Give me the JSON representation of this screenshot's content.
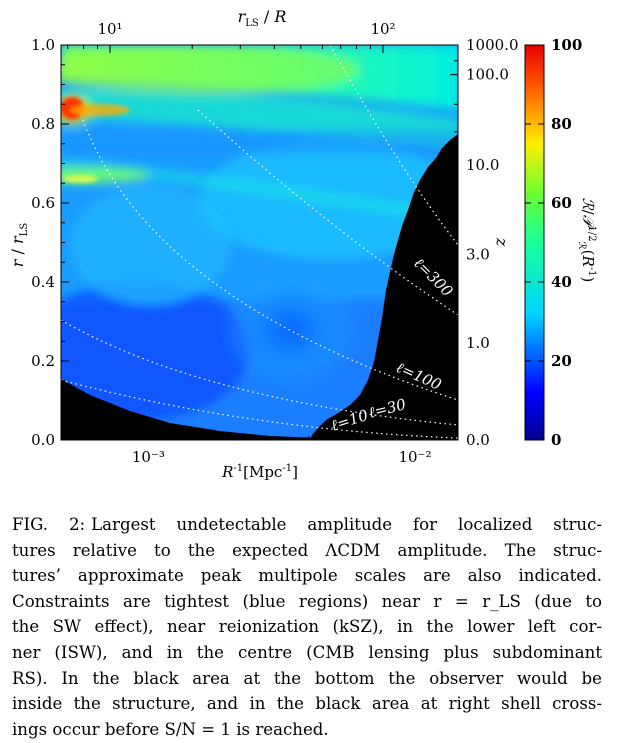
{
  "chart_data": {
    "type": "heatmap",
    "x_bottom": {
      "label": "R⁻¹[Mpc⁻¹]",
      "scale": "log",
      "range": [
        0.00047,
        0.0145
      ],
      "major_ticks": [
        {
          "value": 0.001,
          "label": "10⁻³"
        },
        {
          "value": 0.01,
          "label": "10⁻²"
        }
      ]
    },
    "x_top": {
      "label": "r_LS / R",
      "scale": "log",
      "major_ticks": [
        {
          "value": 10,
          "label": "10¹"
        },
        {
          "value": 100,
          "label": "10²"
        }
      ]
    },
    "y_left": {
      "label": "r / r_LS",
      "range": [
        0.0,
        1.0
      ],
      "ticks": [
        "0.0",
        "0.2",
        "0.4",
        "0.6",
        "0.8",
        "1.0"
      ]
    },
    "y_right": {
      "label": "z",
      "ticks": [
        {
          "frac": 0.0,
          "label": "0.0"
        },
        {
          "frac": 0.245,
          "label": "1.0"
        },
        {
          "frac": 0.47,
          "label": "3.0"
        },
        {
          "frac": 0.696,
          "label": "10.0"
        },
        {
          "frac": 0.925,
          "label": "100.0"
        },
        {
          "frac": 1.0,
          "label": "1000.0"
        }
      ]
    },
    "colorbar": {
      "label": "ℛ/𝒫_ℛ^{1/2}(R⁻¹)",
      "range": [
        0,
        100
      ],
      "ticks": [
        "0",
        "20",
        "40",
        "60",
        "80",
        "100"
      ]
    },
    "multipole_contours": [
      "ℓ=10",
      "ℓ=30",
      "ℓ=100",
      "ℓ=300"
    ]
  },
  "caption": {
    "label": "FIG. 2:",
    "lines": [
      "Largest undetectable amplitude for localized struc-",
      "tures relative to the expected ΛCDM amplitude. The struc-",
      "tures’ approximate peak multipole scales are also indicated.",
      "Constraints are tightest (blue regions) near r = r_LS (due to",
      "the SW effect), near reionization (kSZ), in the lower left cor-",
      "ner (ISW), and in the centre (CMB lensing plus subdominant",
      "RS). In the black area at the bottom the observer would be",
      "inside the structure, and in the black area at right shell cross-",
      "ings occur before S/N = 1 is reached."
    ]
  }
}
